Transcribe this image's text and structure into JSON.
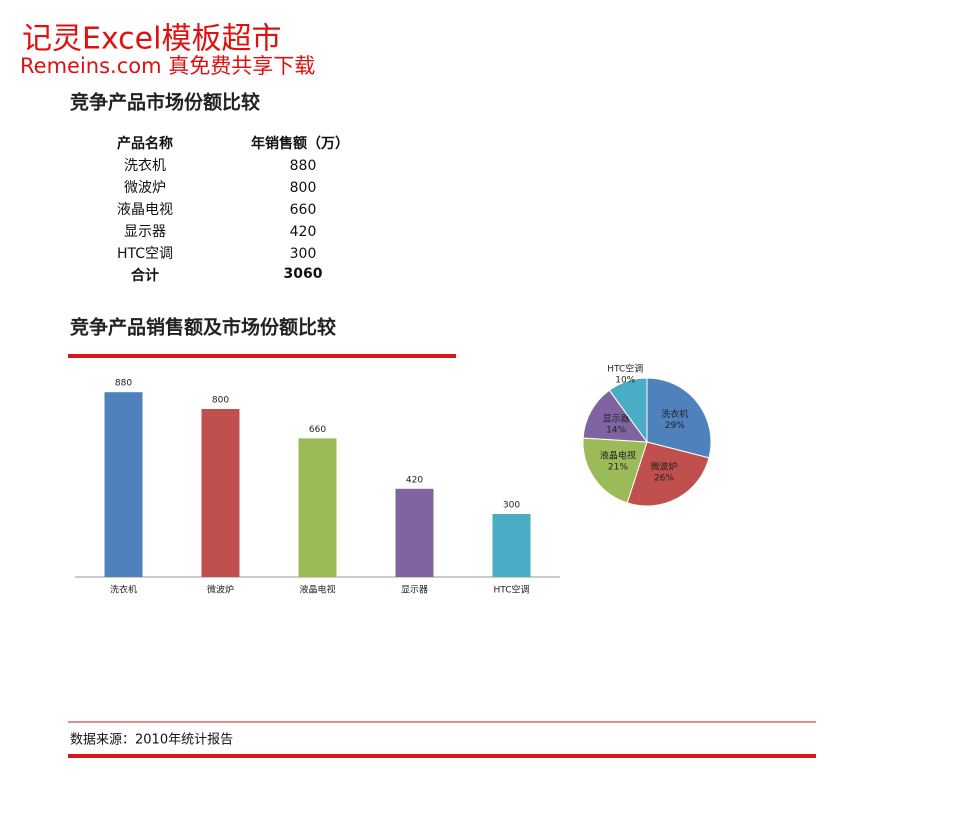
{
  "watermark": {
    "line1": "记灵Excel模板超市",
    "line2": "Remeins.com 真免费共享下载"
  },
  "heading": "竞争产品市场份额比较",
  "table": {
    "header": [
      "产品名称",
      "年销售额（万）"
    ],
    "rows": [
      [
        "洗衣机",
        880
      ],
      [
        "微波炉",
        800
      ],
      [
        "液晶电视",
        660
      ],
      [
        "显示器",
        420
      ],
      [
        "HTC空调",
        300
      ]
    ],
    "total": [
      "合计",
      3060
    ]
  },
  "chart_heading": "竞争产品销售额及市场份额比较",
  "chart_data": [
    {
      "type": "bar",
      "categories": [
        "洗衣机",
        "微波炉",
        "液晶电视",
        "显示器",
        "HTC空调"
      ],
      "values": [
        880,
        800,
        660,
        420,
        300
      ],
      "colors": [
        "#4f81bd",
        "#c0504d",
        "#9bbb59",
        "#8064a2",
        "#4bacc6"
      ],
      "ylim": [
        0,
        1000
      ]
    },
    {
      "type": "pie",
      "categories": [
        "洗衣机",
        "微波炉",
        "液晶电视",
        "显示器",
        "HTC空调"
      ],
      "values": [
        29,
        26,
        21,
        14,
        10
      ],
      "value_labels": [
        "29%",
        "26%",
        "21%",
        "14%",
        "10%"
      ],
      "colors": [
        "#4f81bd",
        "#c0504d",
        "#9bbb59",
        "#8064a2",
        "#4bacc6"
      ]
    }
  ],
  "footer": "数据来源：2010年统计报告"
}
